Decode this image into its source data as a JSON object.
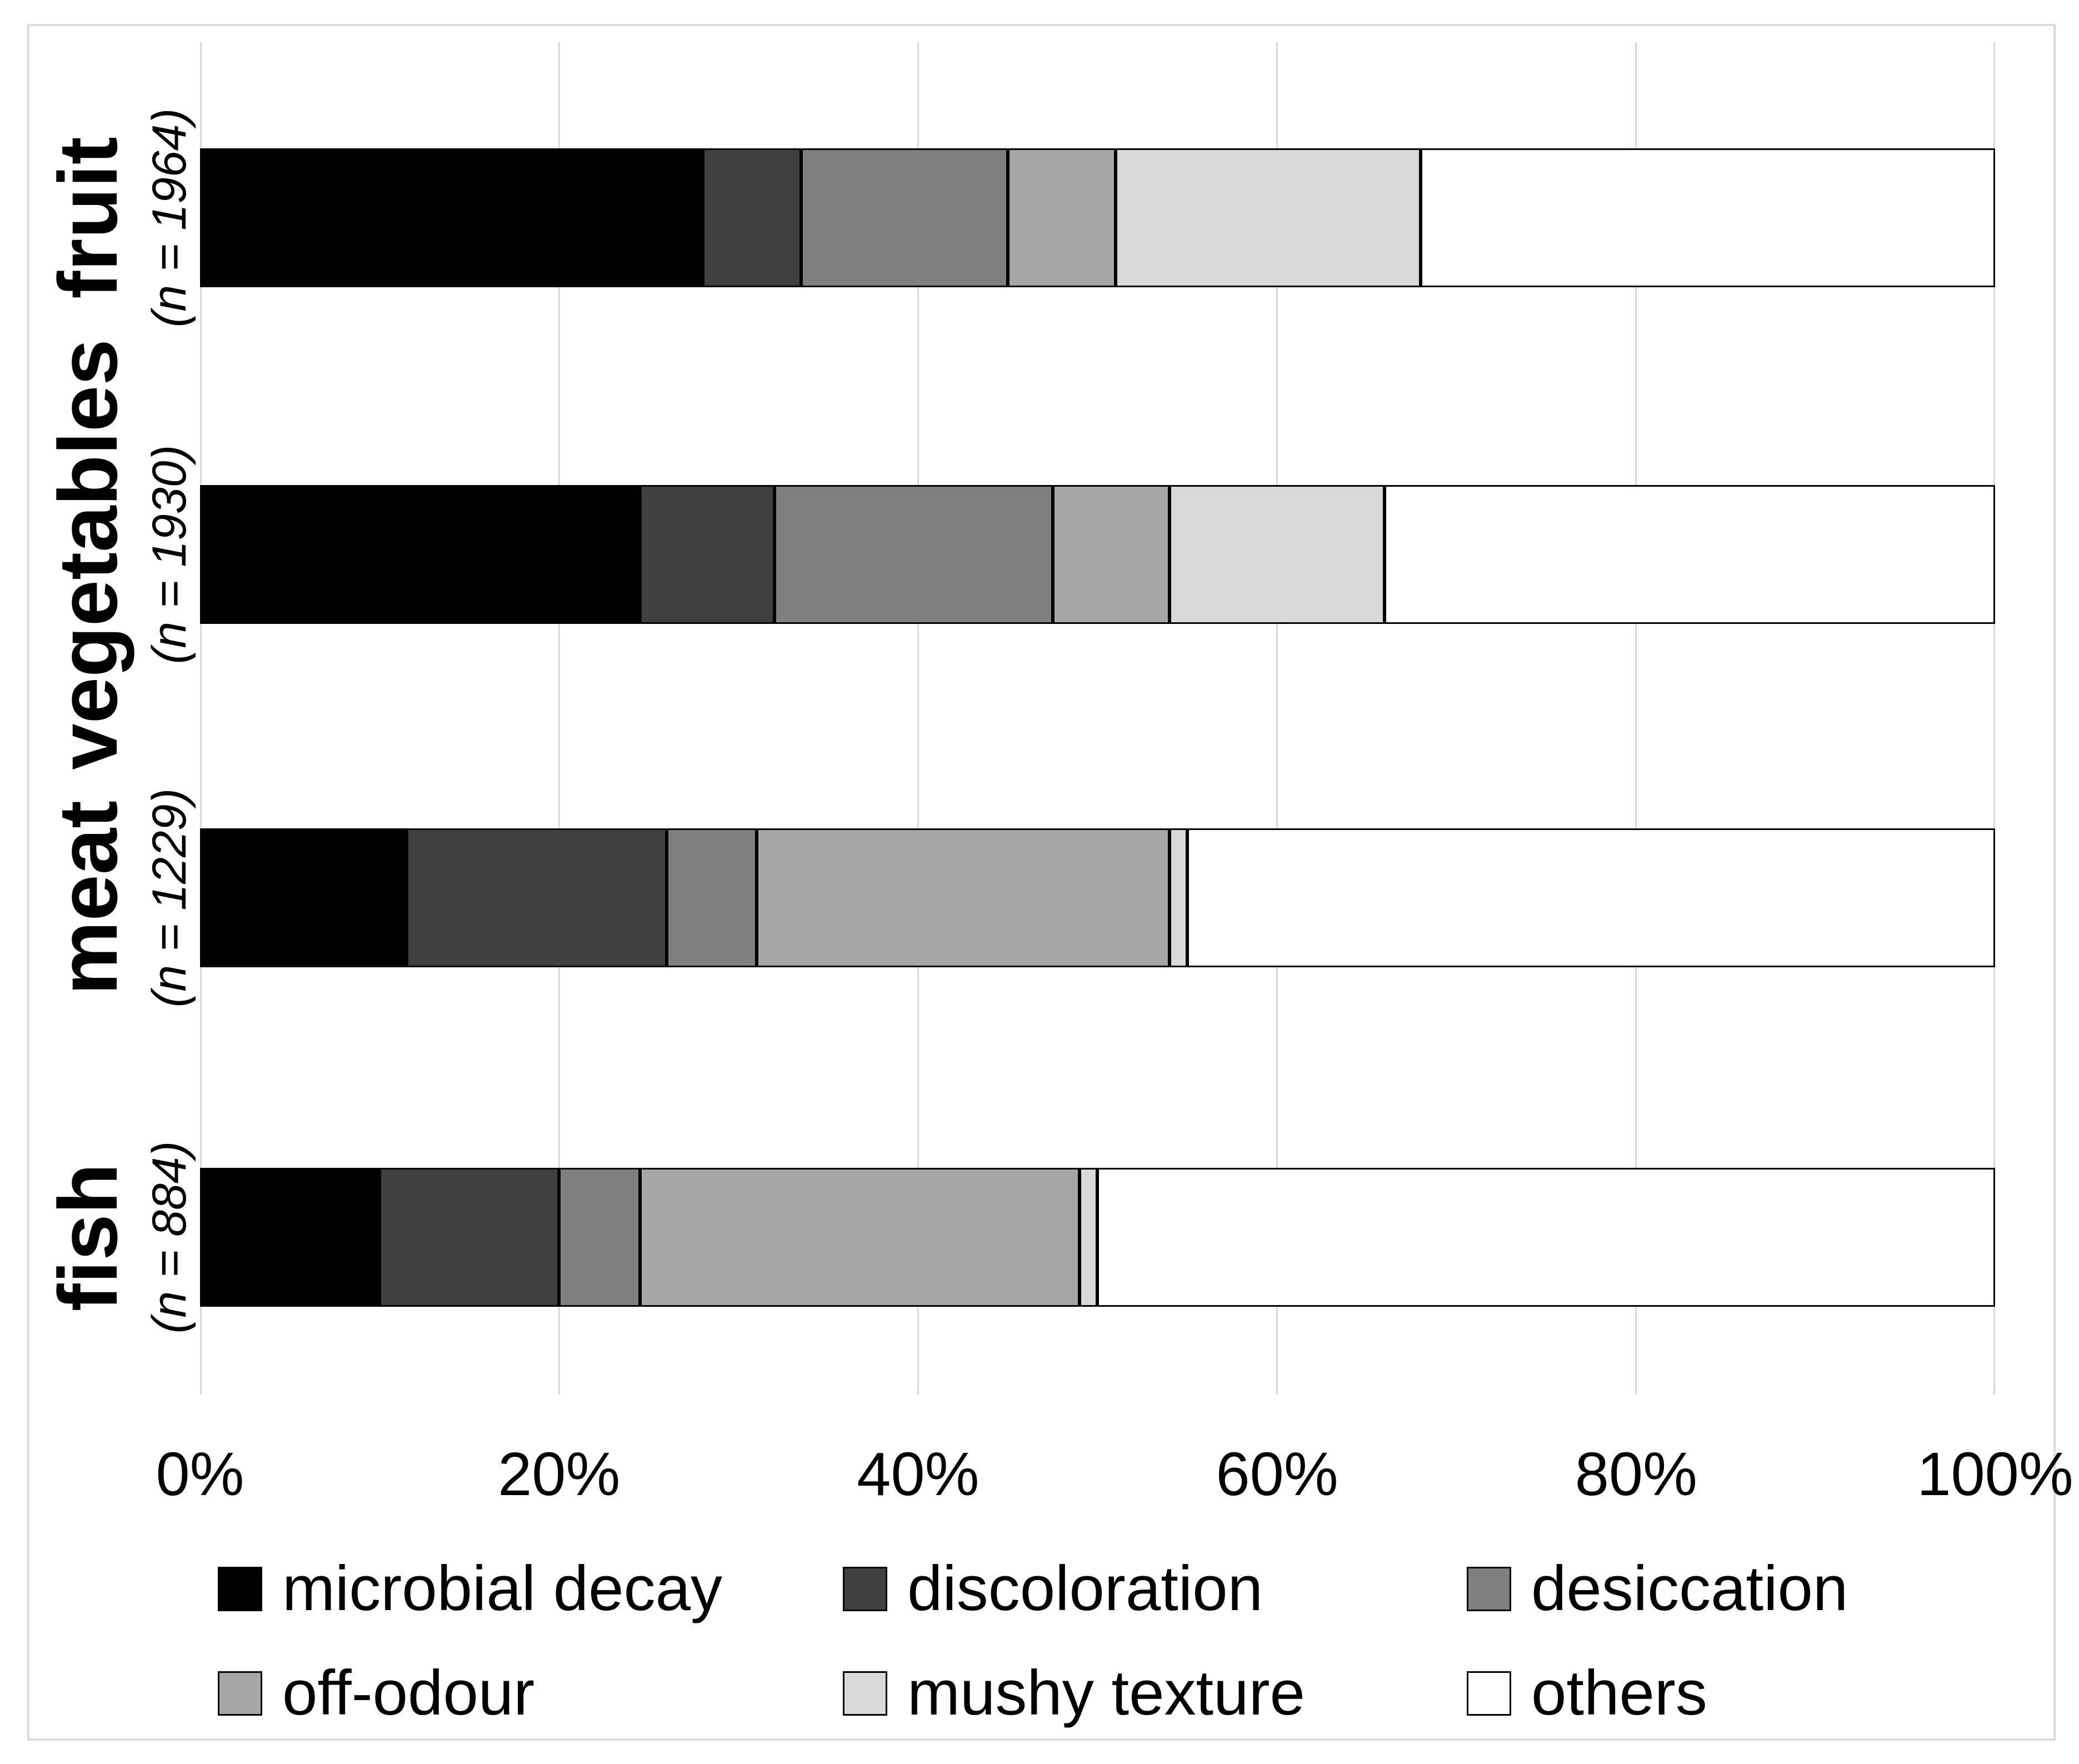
{
  "figure": {
    "background": "#ffffff",
    "frame_color": "#dbdbdb",
    "gridline_color": "#d9d9d9"
  },
  "chart_data": {
    "type": "bar",
    "orientation": "horizontal",
    "stacked": true,
    "unit": "%",
    "title": "",
    "xlabel": "",
    "ylabel": "",
    "grid": true,
    "legend_position": "bottom",
    "categories": [
      "fruit",
      "vegetables",
      "meat",
      "fish"
    ],
    "category_sublabels": [
      "(n = 1964)",
      "(n = 1930)",
      "(n = 1229)",
      "(n = 884)"
    ],
    "x_axis": {
      "min": 0,
      "max": 100,
      "tick_step": 20,
      "tick_labels": [
        "0%",
        "20%",
        "40%",
        "60%",
        "80%",
        "100%"
      ]
    },
    "series": [
      {
        "name": "microbial decay",
        "color": "#000000",
        "values": [
          28,
          24.5,
          11.5,
          10
        ]
      },
      {
        "name": "discoloration",
        "color": "#404040",
        "values": [
          5.5,
          7.5,
          14.5,
          10
        ]
      },
      {
        "name": "desiccation",
        "color": "#7f7f7f",
        "values": [
          11.5,
          15.5,
          5,
          4.5
        ]
      },
      {
        "name": "off-odour",
        "color": "#a6a6a6",
        "values": [
          6,
          6.5,
          23,
          24.5
        ]
      },
      {
        "name": "mushy texture",
        "color": "#d9d9d9",
        "values": [
          17,
          12,
          1,
          1
        ]
      },
      {
        "name": "others",
        "color": "#ffffff",
        "values": [
          32,
          34,
          45,
          50
        ]
      }
    ],
    "legend_rows": [
      [
        "microbial decay",
        "discoloration",
        "desiccation"
      ],
      [
        "off-odour",
        "mushy texture",
        "others"
      ]
    ]
  }
}
